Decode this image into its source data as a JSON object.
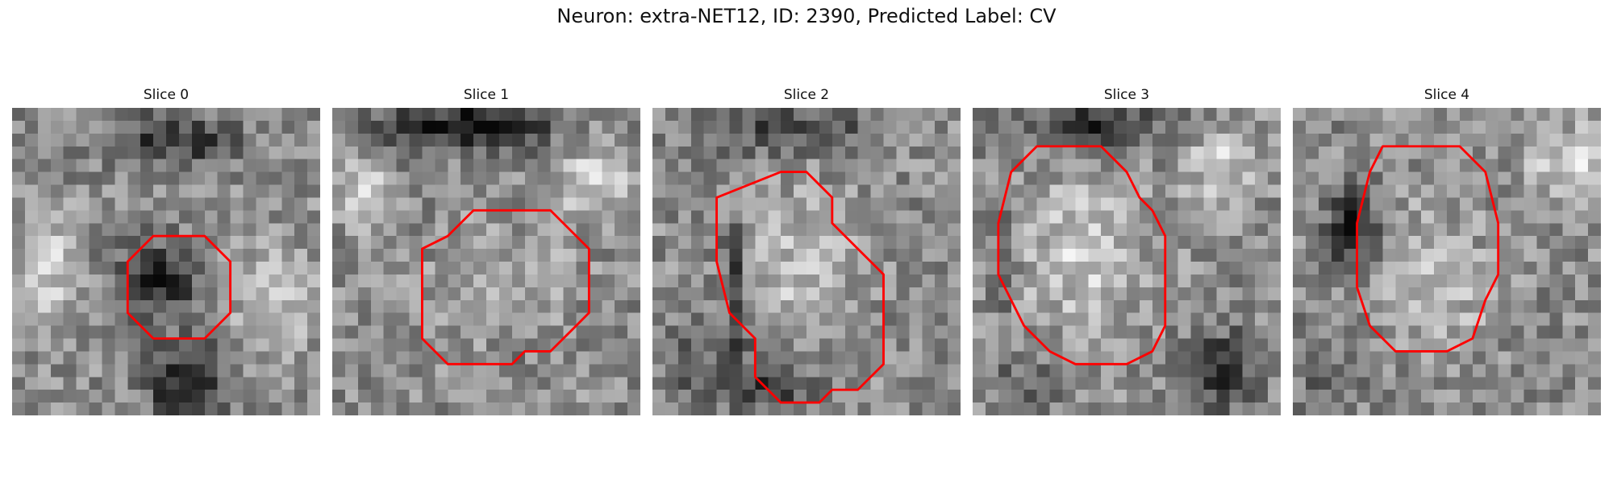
{
  "figure": {
    "title": "Neuron: extra-NET12, ID: 2390, Predicted Label: CV"
  },
  "contour_color": "#ff0000",
  "colormap": "grayscale",
  "panels": [
    {
      "title": "Slice 0",
      "contour": [
        [
          11,
          10
        ],
        [
          15,
          10
        ],
        [
          17,
          12
        ],
        [
          17,
          16
        ],
        [
          15,
          18
        ],
        [
          11,
          18
        ],
        [
          9,
          16
        ],
        [
          9,
          12
        ]
      ]
    },
    {
      "title": "Slice 1",
      "contour": [
        [
          9,
          10
        ],
        [
          11,
          8
        ],
        [
          17,
          8
        ],
        [
          20,
          11
        ],
        [
          20,
          16
        ],
        [
          19,
          17
        ],
        [
          17,
          19
        ],
        [
          15,
          19
        ],
        [
          14,
          20
        ],
        [
          9,
          20
        ],
        [
          7,
          18
        ],
        [
          7,
          11
        ]
      ]
    },
    {
      "title": "Slice 2",
      "contour": [
        [
          10,
          5
        ],
        [
          12,
          5
        ],
        [
          14,
          7
        ],
        [
          14,
          9
        ],
        [
          16,
          11
        ],
        [
          18,
          13
        ],
        [
          18,
          20
        ],
        [
          16,
          22
        ],
        [
          14,
          22
        ],
        [
          13,
          23
        ],
        [
          10,
          23
        ],
        [
          8,
          21
        ],
        [
          8,
          18
        ],
        [
          6,
          16
        ],
        [
          5,
          12
        ],
        [
          5,
          7
        ]
      ]
    },
    {
      "title": "Slice 3",
      "contour": [
        [
          5,
          3
        ],
        [
          10,
          3
        ],
        [
          12,
          5
        ],
        [
          13,
          7
        ],
        [
          14,
          8
        ],
        [
          15,
          10
        ],
        [
          15,
          17
        ],
        [
          14,
          19
        ],
        [
          12,
          20
        ],
        [
          8,
          20
        ],
        [
          6,
          19
        ],
        [
          4,
          17
        ],
        [
          3,
          15
        ],
        [
          2,
          13
        ],
        [
          2,
          9
        ],
        [
          3,
          5
        ]
      ]
    },
    {
      "title": "Slice 4",
      "contour": [
        [
          7,
          3
        ],
        [
          13,
          3
        ],
        [
          15,
          5
        ],
        [
          16,
          9
        ],
        [
          16,
          13
        ],
        [
          15,
          15
        ],
        [
          14,
          18
        ],
        [
          12,
          19
        ],
        [
          8,
          19
        ],
        [
          6,
          17
        ],
        [
          5,
          14
        ],
        [
          5,
          9
        ],
        [
          6,
          5
        ]
      ]
    }
  ]
}
